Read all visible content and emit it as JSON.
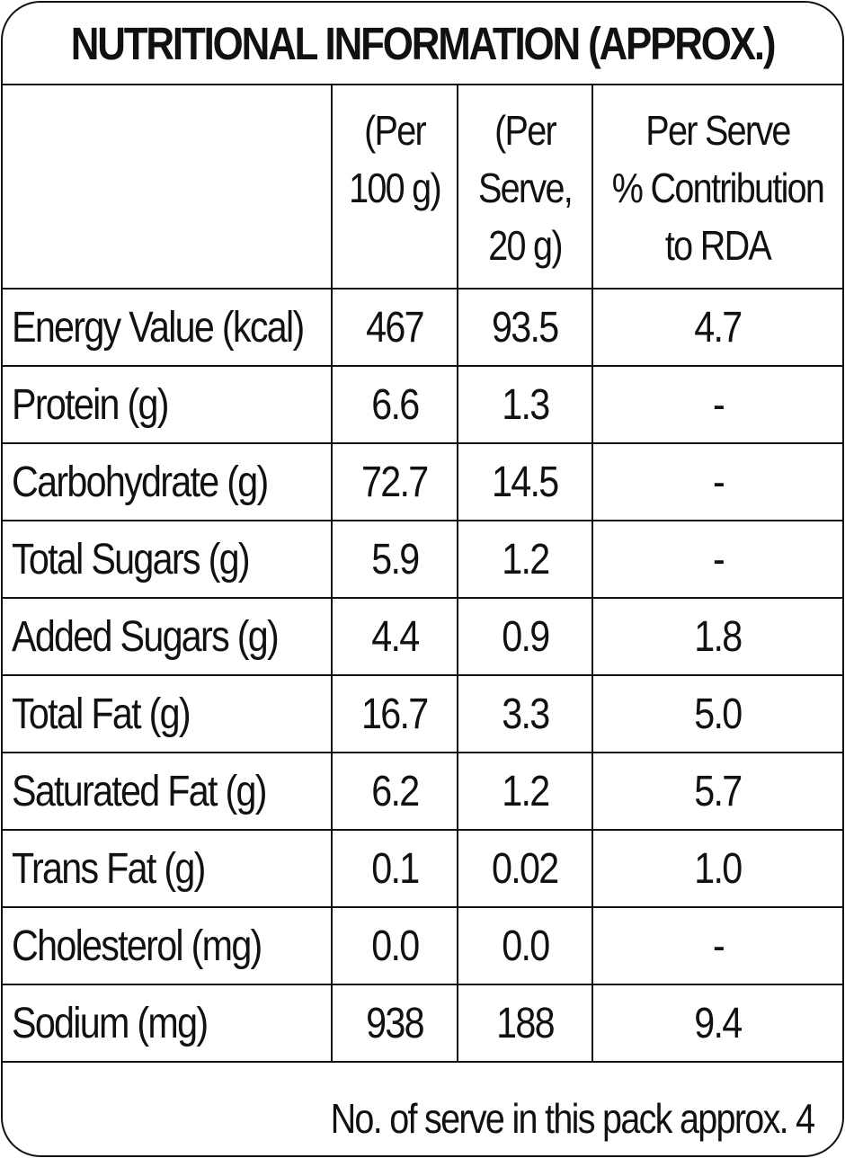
{
  "title": "NUTRITIONAL INFORMATION (APPROX.)",
  "headers": {
    "nutrient": "",
    "per_100g": "(Per\n100 g)",
    "per_serve": "(Per\nServe,\n20 g)",
    "rda": "Per Serve\n% Contribution\nto RDA"
  },
  "rows": [
    {
      "name": "Energy Value (kcal)",
      "per_100g": "467",
      "per_serve": "93.5",
      "rda": "4.7"
    },
    {
      "name": "Protein (g)",
      "per_100g": "6.6",
      "per_serve": "1.3",
      "rda": "-"
    },
    {
      "name": "Carbohydrate (g)",
      "per_100g": "72.7",
      "per_serve": "14.5",
      "rda": "-"
    },
    {
      "name": "Total Sugars (g)",
      "per_100g": "5.9",
      "per_serve": "1.2",
      "rda": "-"
    },
    {
      "name": "Added Sugars (g)",
      "per_100g": "4.4",
      "per_serve": "0.9",
      "rda": "1.8"
    },
    {
      "name": "Total Fat (g)",
      "per_100g": "16.7",
      "per_serve": "3.3",
      "rda": "5.0"
    },
    {
      "name": "Saturated Fat (g)",
      "per_100g": "6.2",
      "per_serve": "1.2",
      "rda": "5.7"
    },
    {
      "name": "Trans Fat (g)",
      "per_100g": "0.1",
      "per_serve": "0.02",
      "rda": "1.0"
    },
    {
      "name": "Cholesterol (mg)",
      "per_100g": "0.0",
      "per_serve": "0.0",
      "rda": "-"
    },
    {
      "name": "Sodium (mg)",
      "per_100g": "938",
      "per_serve": "188",
      "rda": "9.4"
    }
  ],
  "footer": "No. of serve in this pack approx. 4",
  "colors": {
    "ink": "#111111",
    "background": "#ffffff"
  }
}
